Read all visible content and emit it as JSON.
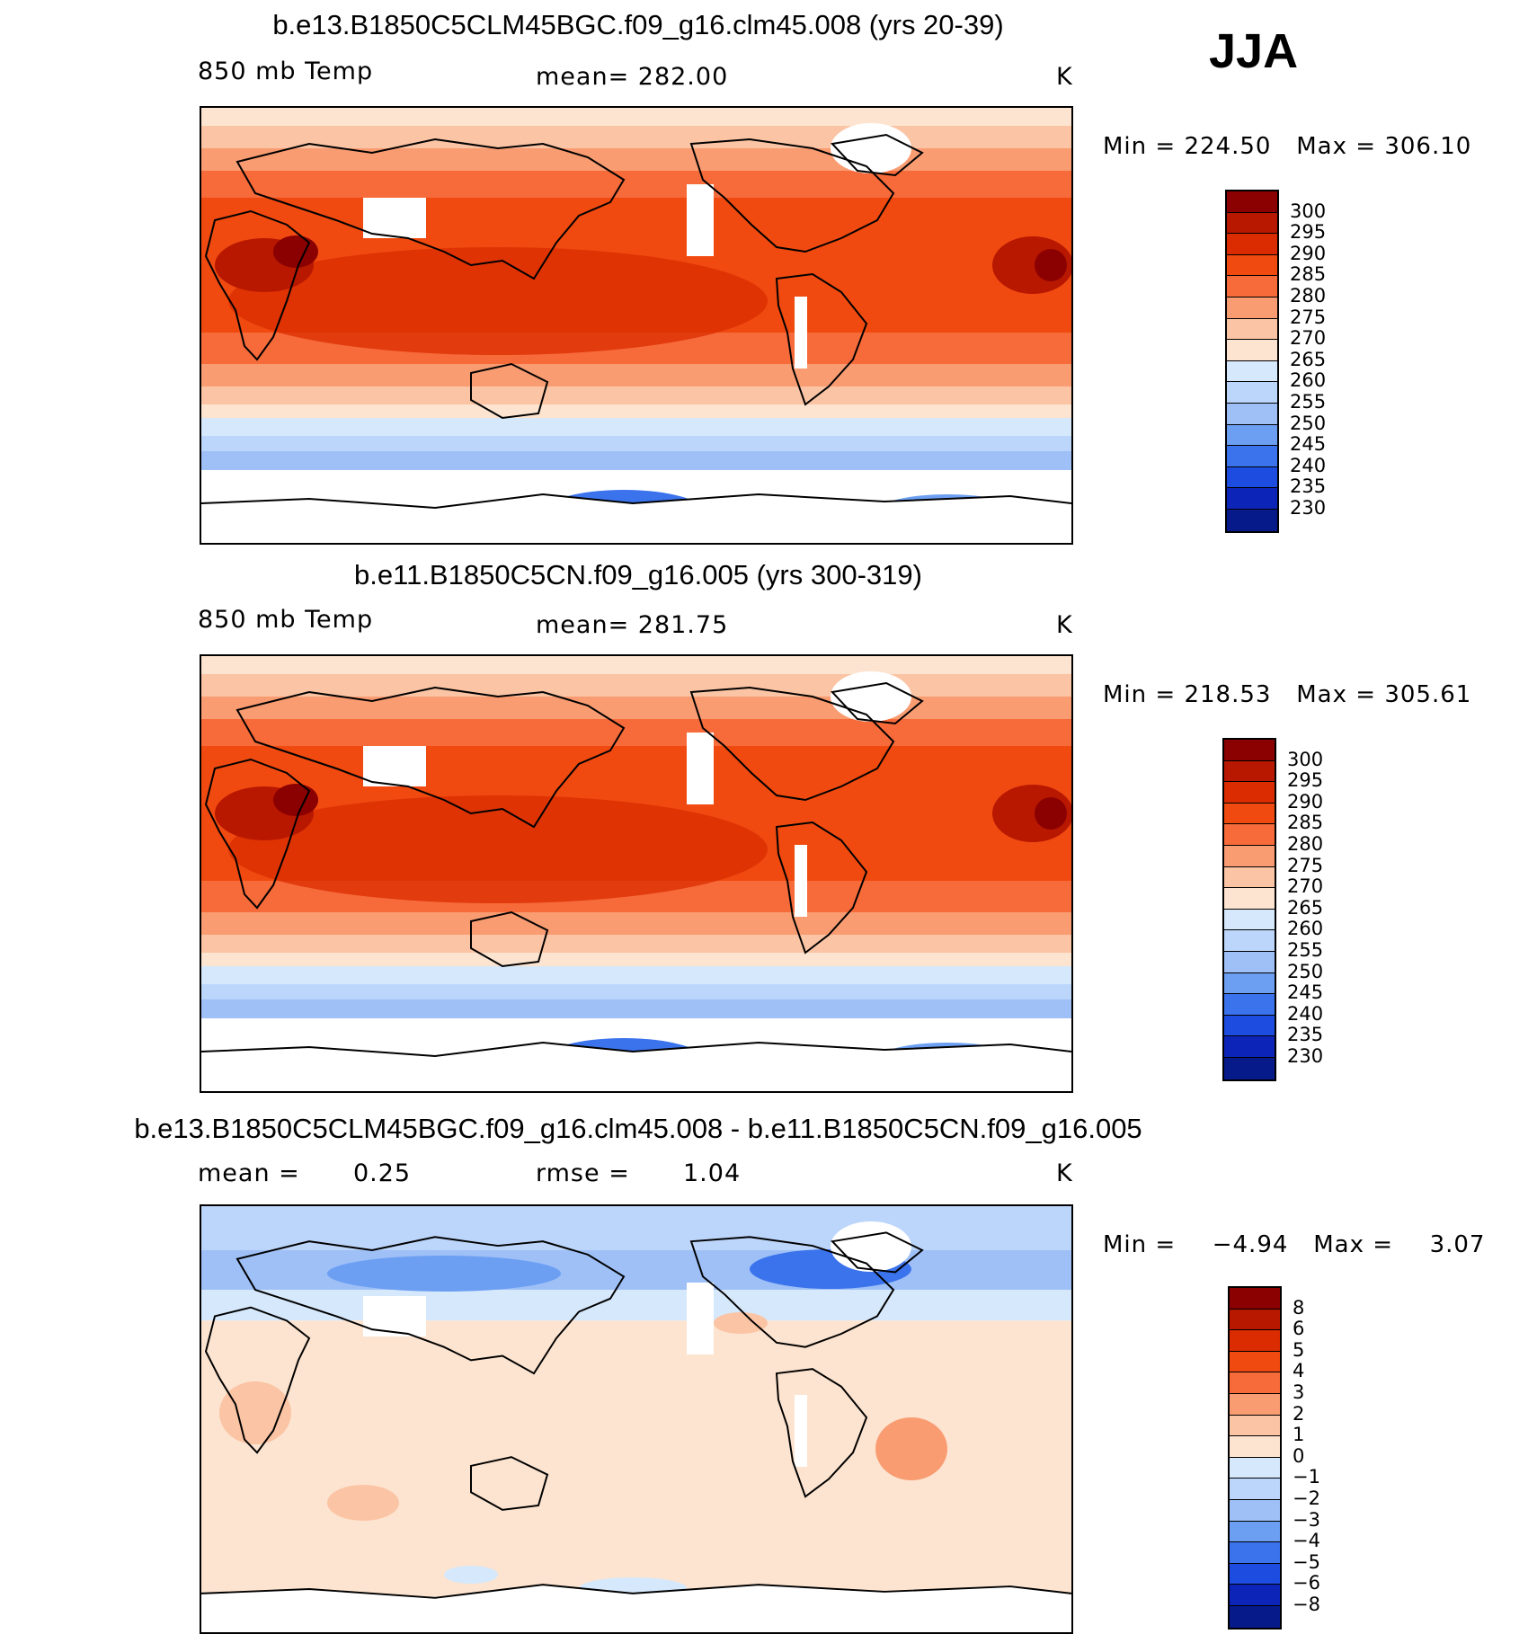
{
  "season": "JJA",
  "panels": [
    {
      "title": "b.e13.B1850C5CLM45BGC.f09_g16.clm45.008 (yrs 20-39)",
      "left_label": "850 mb Temp",
      "center_label": "mean= 282.00",
      "units": "K",
      "min_label": "Min",
      "min_value": "224.50",
      "max_label": "Max",
      "max_value": "306.10",
      "colorbar": {
        "ticks": [
          "300",
          "295",
          "290",
          "285",
          "280",
          "275",
          "270",
          "265",
          "260",
          "255",
          "250",
          "245",
          "240",
          "235",
          "230"
        ],
        "colors": [
          "#8b0000",
          "#b81800",
          "#da2c00",
          "#f04a10",
          "#f76a3a",
          "#f99c72",
          "#fbc4a4",
          "#fde4d0",
          "#d6e8fb",
          "#bcd5fa",
          "#9ec0f7",
          "#6c9ff2",
          "#3b73ec",
          "#1d4de0",
          "#0c25b8",
          "#061a8a"
        ]
      },
      "field": "temp"
    },
    {
      "title": "b.e11.B1850C5CN.f09_g16.005 (yrs 300-319)",
      "left_label": "850 mb Temp",
      "center_label": "mean= 281.75",
      "units": "K",
      "min_label": "Min",
      "min_value": "218.53",
      "max_label": "Max",
      "max_value": "305.61",
      "colorbar": {
        "ticks": [
          "300",
          "295",
          "290",
          "285",
          "280",
          "275",
          "270",
          "265",
          "260",
          "255",
          "250",
          "245",
          "240",
          "235",
          "230"
        ],
        "colors": [
          "#8b0000",
          "#b81800",
          "#da2c00",
          "#f04a10",
          "#f76a3a",
          "#f99c72",
          "#fbc4a4",
          "#fde4d0",
          "#d6e8fb",
          "#bcd5fa",
          "#9ec0f7",
          "#6c9ff2",
          "#3b73ec",
          "#1d4de0",
          "#0c25b8",
          "#061a8a"
        ]
      },
      "field": "temp"
    },
    {
      "title": "b.e13.B1850C5CLM45BGC.f09_g16.clm45.008 - b.e11.B1850C5CN.f09_g16.005",
      "left_label": "mean =",
      "left_value": "0.25",
      "center_label": "rmse =",
      "center_value": "1.04",
      "units": "K",
      "min_label": "Min",
      "min_value": "−4.94",
      "max_label": "Max",
      "max_value": "3.07",
      "colorbar": {
        "ticks": [
          "8",
          "6",
          "5",
          "4",
          "3",
          "2",
          "1",
          "0",
          "−1",
          "−2",
          "−3",
          "−4",
          "−5",
          "−6",
          "−8"
        ],
        "colors": [
          "#8b0000",
          "#b81800",
          "#da2c00",
          "#f04a10",
          "#f76a3a",
          "#f99c72",
          "#fbc4a4",
          "#fde4d0",
          "#d6e8fb",
          "#bcd5fa",
          "#9ec0f7",
          "#6c9ff2",
          "#3b73ec",
          "#1d4de0",
          "#0c25b8",
          "#061a8a"
        ]
      },
      "field": "diff"
    }
  ]
}
